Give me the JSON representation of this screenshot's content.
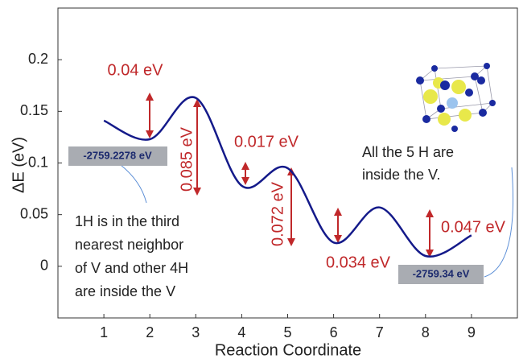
{
  "chart_data": {
    "type": "line",
    "x_label": "Reaction Coordinate",
    "y_label": "ΔE (eV)",
    "x": [
      1,
      2,
      3,
      4,
      5,
      6,
      7,
      8,
      9
    ],
    "series": [
      {
        "color": "#141a8a",
        "values": [
          0.141,
          0.123,
          0.163,
          0.078,
          0.095,
          0.023,
          0.057,
          0.01,
          0.03
        ]
      }
    ],
    "xlim": [
      0,
      10
    ],
    "xticks": [
      1,
      2,
      3,
      4,
      5,
      6,
      7,
      8,
      9
    ],
    "ylim": [
      -0.05,
      0.25
    ],
    "yticks": [
      0,
      0.05,
      0.1,
      0.15,
      0.2
    ],
    "annotations": [
      "0.04 eV",
      "0.085 eV",
      "0.017 eV",
      "0.072 eV",
      "0.034 eV",
      "0.047 eV"
    ],
    "energy_labels": [
      "-2759.2278 eV",
      "-2759.34 eV"
    ],
    "note_left": [
      "1H is in the third",
      "nearest neighbor",
      "of V and other 4H",
      "are inside the V"
    ],
    "note_right": [
      "All   the   5   H   are",
      "inside the V."
    ]
  }
}
